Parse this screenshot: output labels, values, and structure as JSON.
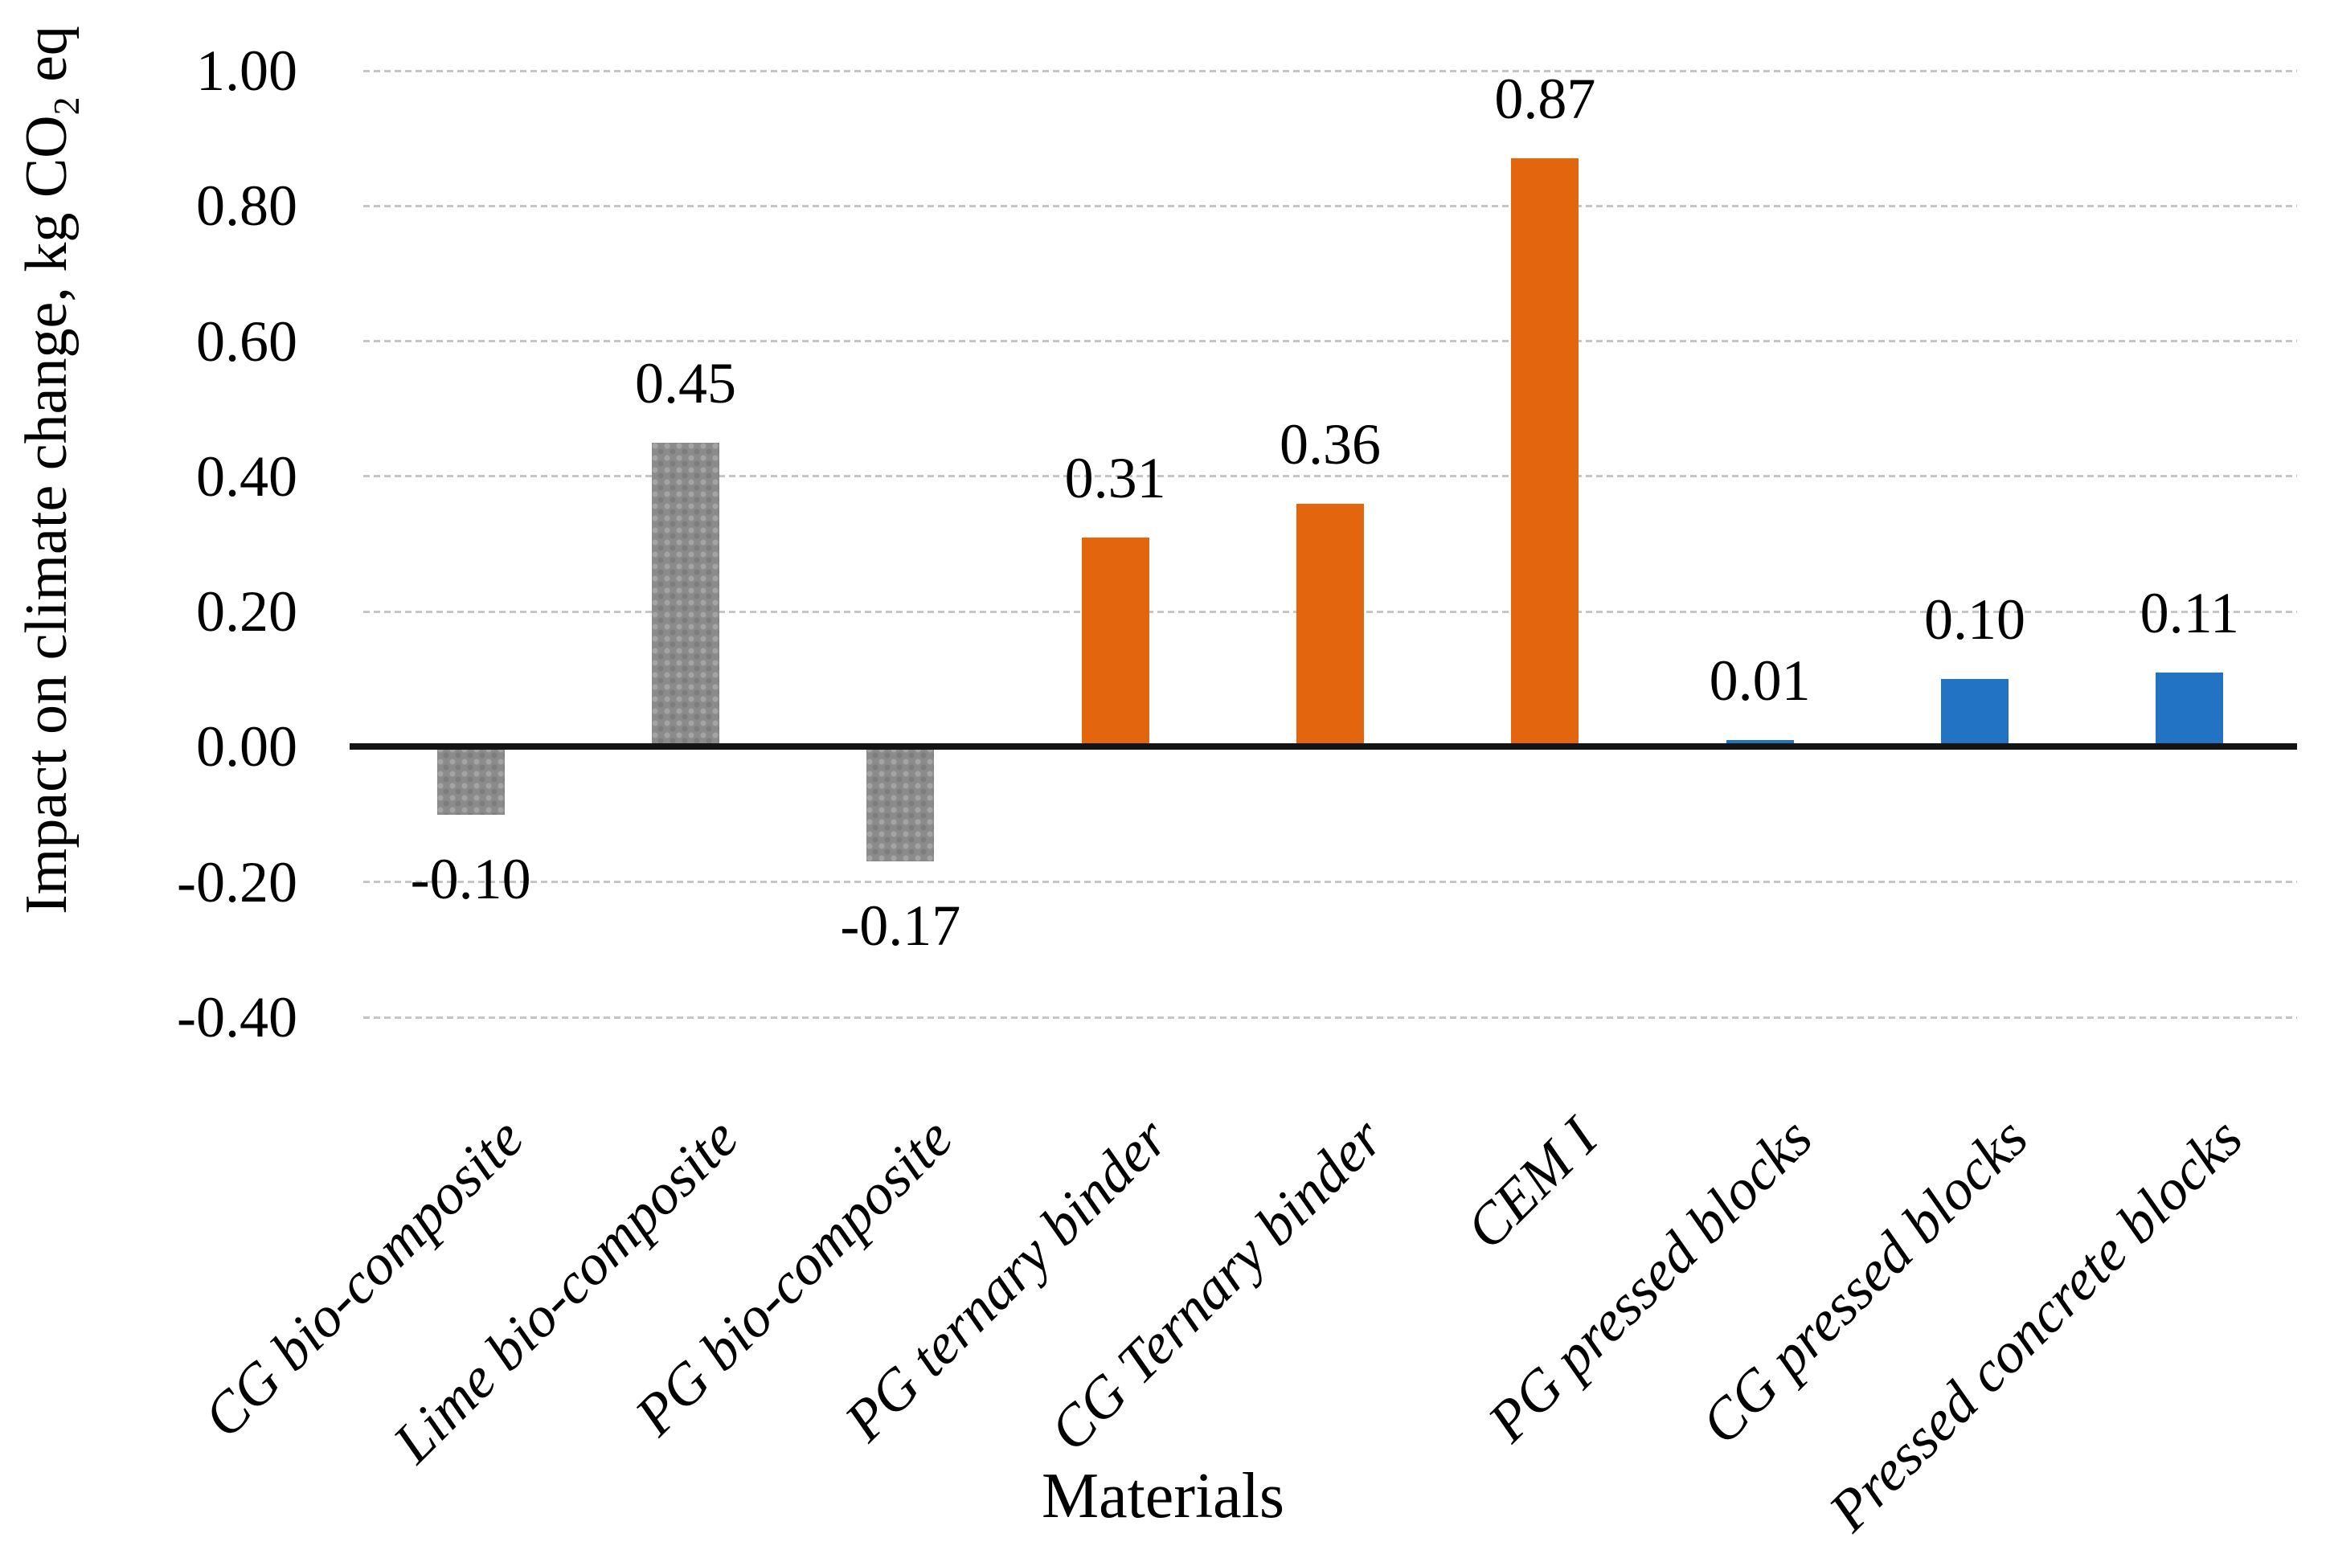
{
  "chart_data": {
    "type": "bar",
    "title": "",
    "xlabel": "Materials",
    "ylabel": "Impact on climate change, kg CO2 eq",
    "ylabel_parts": {
      "pre": "Impact on climate change, kg CO",
      "sub": "2",
      "post": " eq"
    },
    "categories": [
      "CG bio-composite",
      "Lime bio-composite",
      "PG bio-composite",
      "PG ternary binder",
      "CG Ternary binder",
      "CEM I",
      "PG pressed blocks",
      "CG pressed blocks",
      "Pressed concrete blocks"
    ],
    "values": [
      -0.1,
      0.45,
      -0.17,
      0.31,
      0.36,
      0.87,
      0.01,
      0.1,
      0.11
    ],
    "data_labels": [
      "-0.10",
      "0.45",
      "-0.17",
      "0.31",
      "0.36",
      "0.87",
      "0.01",
      "0.10",
      "0.11"
    ],
    "bar_colors": [
      "#8b8b8b",
      "#8b8b8b",
      "#8b8b8b",
      "#e3650d",
      "#e3650d",
      "#e3650d",
      "#2273c4",
      "#2273c4",
      "#2273c4"
    ],
    "ylim": [
      -0.4,
      1.0
    ],
    "ytick_labels": [
      "1.00",
      "0.80",
      "0.60",
      "0.40",
      "0.20",
      "0.00",
      "-0.20",
      "-0.40"
    ],
    "ytick_values": [
      1.0,
      0.8,
      0.6,
      0.4,
      0.2,
      0.0,
      -0.2,
      -0.4
    ],
    "grid": "horizontal-dashed",
    "legend": "none"
  },
  "colors": {
    "gray_bar": "#8b8b8b",
    "orange_bar": "#e3650d",
    "blue_bar": "#2273c4",
    "gridline": "#c6c6c6",
    "axis_line": "#141414",
    "text": "#000000",
    "background": "#ffffff"
  }
}
